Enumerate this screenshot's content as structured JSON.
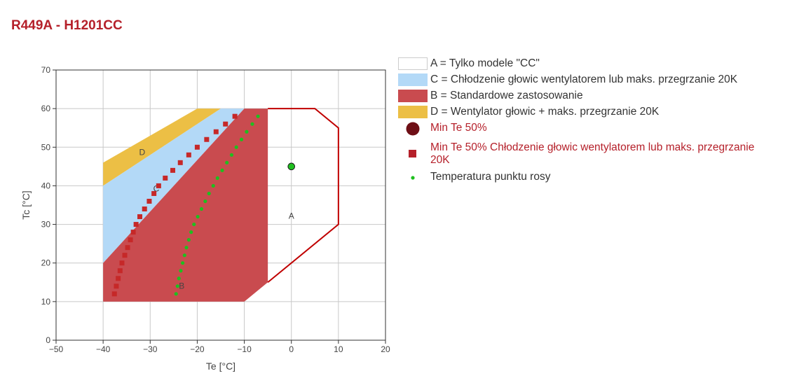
{
  "page": {
    "title": "R449A - H1201CC"
  },
  "legend": [
    {
      "key": "A",
      "label": "A = Tylko modele \"CC\"",
      "kind": "area",
      "fill": "#ffffff",
      "stroke": "#cccccc",
      "text_color": "#333333"
    },
    {
      "key": "C",
      "label": "C = Chłodzenie głowic wentylatorem lub maks. przegrzanie 20K",
      "kind": "area",
      "fill": "#b3d9f7",
      "stroke": "#b3d9f7",
      "text_color": "#333333"
    },
    {
      "key": "B",
      "label": "B = Standardowe zastosowanie",
      "kind": "area",
      "fill": "#c94b4f",
      "stroke": "#c94b4f",
      "text_color": "#333333"
    },
    {
      "key": "D",
      "label": "D = Wentylator głowic + maks. przegrzanie 20K",
      "kind": "area",
      "fill": "#ecbf45",
      "stroke": "#ecbf45",
      "text_color": "#333333"
    },
    {
      "key": "min50",
      "label": "Min Te 50%",
      "kind": "big-circle",
      "fill": "#6e0f16",
      "text_color": "#b5202a"
    },
    {
      "key": "min50c",
      "label": "Min Te 50% Chłodzenie głowic wentylatorem lub maks. przegrzanie 20K",
      "kind": "square",
      "fill": "#b5202a",
      "text_color": "#b5202a"
    },
    {
      "key": "dew",
      "label": "Temperatura punktu rosy",
      "kind": "small-dot",
      "fill": "#1fbf1f",
      "text_color": "#333333"
    }
  ],
  "chart_data": {
    "type": "area",
    "title": "R449A - H1201CC",
    "xlabel": "Te [°C]",
    "ylabel": "Tc [°C]",
    "xlim": [
      -50,
      20
    ],
    "ylim": [
      0,
      70
    ],
    "x_ticks": [
      -50,
      -40,
      -30,
      -20,
      -10,
      0,
      10,
      20
    ],
    "y_ticks": [
      0,
      10,
      20,
      30,
      40,
      50,
      60,
      70
    ],
    "x_tick_labels": [
      "−50",
      "−40",
      "−30",
      "−20",
      "−10",
      "0",
      "10",
      "20"
    ],
    "y_tick_labels": [
      "0",
      "10",
      "20",
      "30",
      "40",
      "50",
      "60",
      "70"
    ],
    "grid": true,
    "legend_position": "right",
    "regions": [
      {
        "key": "D",
        "label": "D",
        "fill": "#ecbf45",
        "polygon": [
          [
            -40,
            40
          ],
          [
            -40,
            46
          ],
          [
            -20,
            60
          ],
          [
            -15,
            60
          ]
        ],
        "label_pos": [
          -31.7,
          48
        ]
      },
      {
        "key": "C",
        "label": "C",
        "fill": "#b3d9f7",
        "polygon": [
          [
            -40,
            20
          ],
          [
            -40,
            40
          ],
          [
            -15,
            60
          ],
          [
            -10,
            60
          ]
        ],
        "label_pos": [
          -28.7,
          38.5
        ]
      },
      {
        "key": "B",
        "label": "B",
        "fill": "#c94b4f",
        "polygon": [
          [
            -40,
            10
          ],
          [
            -40,
            20
          ],
          [
            -10,
            60
          ],
          [
            -5,
            60
          ],
          [
            -5,
            15
          ],
          [
            -10,
            10
          ]
        ],
        "label_pos": [
          -23.3,
          13.3
        ]
      },
      {
        "key": "A",
        "label": "A",
        "fill": "none",
        "stroke": "#c00000",
        "polyline": [
          [
            -5,
            60
          ],
          [
            5,
            60
          ],
          [
            10,
            55
          ],
          [
            10,
            30
          ],
          [
            -5,
            15
          ]
        ],
        "label_pos": [
          0,
          31.5
        ]
      }
    ],
    "series": [
      {
        "key": "min50",
        "type": "scatter",
        "marker": "circle",
        "color": "#1fbf1f",
        "points": [
          [
            0,
            45
          ]
        ]
      },
      {
        "key": "min50c",
        "type": "scatter",
        "marker": "square",
        "color": "#c62828",
        "points": [
          [
            -37.6,
            12
          ],
          [
            -37.2,
            14
          ],
          [
            -36.8,
            16
          ],
          [
            -36.4,
            18
          ],
          [
            -36,
            20
          ],
          [
            -35.4,
            22
          ],
          [
            -34.8,
            24
          ],
          [
            -34.2,
            26
          ],
          [
            -33.6,
            28
          ],
          [
            -33,
            30
          ],
          [
            -32.2,
            32
          ],
          [
            -31.2,
            34
          ],
          [
            -30.2,
            36
          ],
          [
            -29.2,
            38
          ],
          [
            -28.2,
            40
          ],
          [
            -26.8,
            42
          ],
          [
            -25.2,
            44
          ],
          [
            -23.6,
            46
          ],
          [
            -21.8,
            48
          ],
          [
            -20,
            50
          ],
          [
            -18,
            52
          ],
          [
            -16,
            54
          ],
          [
            -14,
            56
          ],
          [
            -12,
            58
          ]
        ]
      },
      {
        "key": "dew",
        "type": "scatter",
        "marker": "dot",
        "color": "#1fbf1f",
        "points": [
          [
            -24.5,
            12
          ],
          [
            -24.2,
            14
          ],
          [
            -23.9,
            16
          ],
          [
            -23.5,
            18
          ],
          [
            -23.1,
            20
          ],
          [
            -22.7,
            22
          ],
          [
            -22.3,
            24
          ],
          [
            -21.8,
            26
          ],
          [
            -21.3,
            28
          ],
          [
            -20.7,
            30
          ],
          [
            -19.9,
            32
          ],
          [
            -19.1,
            34
          ],
          [
            -18.3,
            36
          ],
          [
            -17.5,
            38
          ],
          [
            -16.6,
            40
          ],
          [
            -15.7,
            42
          ],
          [
            -14.7,
            44
          ],
          [
            -13.7,
            46
          ],
          [
            -12.7,
            48
          ],
          [
            -11.7,
            50
          ],
          [
            -10.6,
            52
          ],
          [
            -9.5,
            54
          ],
          [
            -8.3,
            56
          ],
          [
            -7.1,
            58
          ]
        ]
      }
    ]
  }
}
